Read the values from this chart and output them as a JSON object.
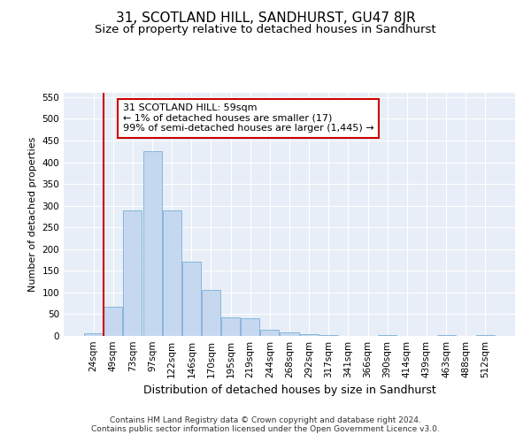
{
  "title": "31, SCOTLAND HILL, SANDHURST, GU47 8JR",
  "subtitle": "Size of property relative to detached houses in Sandhurst",
  "xlabel": "Distribution of detached houses by size in Sandhurst",
  "ylabel": "Number of detached properties",
  "bar_color": "#c5d8f0",
  "bar_edge_color": "#7bafd4",
  "background_color": "#e8eef7",
  "grid_color": "#ffffff",
  "fig_background": "#ffffff",
  "categories": [
    "24sqm",
    "49sqm",
    "73sqm",
    "97sqm",
    "122sqm",
    "146sqm",
    "170sqm",
    "195sqm",
    "219sqm",
    "244sqm",
    "268sqm",
    "292sqm",
    "317sqm",
    "341sqm",
    "366sqm",
    "390sqm",
    "414sqm",
    "439sqm",
    "463sqm",
    "488sqm",
    "512sqm"
  ],
  "values": [
    7,
    68,
    290,
    425,
    290,
    172,
    105,
    43,
    40,
    15,
    8,
    5,
    2,
    1,
    0,
    3,
    0,
    0,
    3,
    0,
    3
  ],
  "ylim": [
    0,
    560
  ],
  "yticks": [
    0,
    50,
    100,
    150,
    200,
    250,
    300,
    350,
    400,
    450,
    500,
    550
  ],
  "annotation_text": "31 SCOTLAND HILL: 59sqm\n← 1% of detached houses are smaller (17)\n99% of semi-detached houses are larger (1,445) →",
  "annotation_box_color": "#ffffff",
  "annotation_box_edge": "#cc0000",
  "vline_x_index": 1,
  "vline_color": "#cc0000",
  "footnote": "Contains HM Land Registry data © Crown copyright and database right 2024.\nContains public sector information licensed under the Open Government Licence v3.0.",
  "title_fontsize": 11,
  "subtitle_fontsize": 9.5,
  "xlabel_fontsize": 9,
  "ylabel_fontsize": 8,
  "tick_fontsize": 7.5,
  "annotation_fontsize": 8,
  "footnote_fontsize": 6.5
}
